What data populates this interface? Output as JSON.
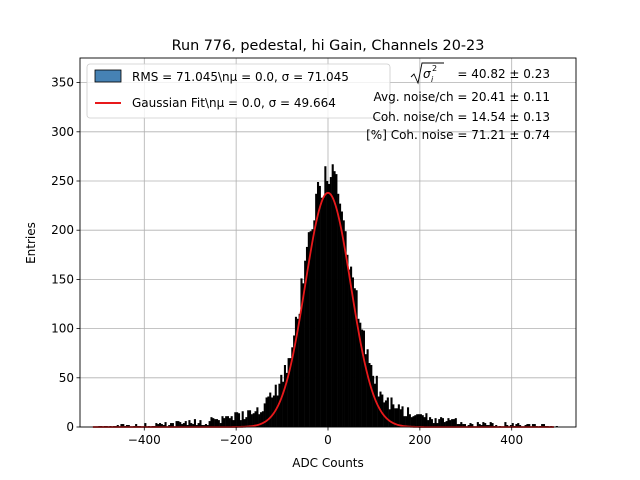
{
  "chart_data": {
    "type": "bar",
    "title": "Run 776, pedestal, hi Gain, Channels 20-23",
    "xlabel": "ADC Counts",
    "ylabel": "Entries",
    "xlim": [
      -540,
      540
    ],
    "ylim": [
      0,
      375
    ],
    "xticks": [
      -400,
      -200,
      0,
      200,
      400
    ],
    "yticks": [
      0,
      50,
      100,
      150,
      200,
      250,
      300,
      350
    ],
    "grid": true,
    "legend_position": "top-left",
    "histogram": {
      "name": "RMS = 71.045\\nμ = 0.0, σ = 71.045",
      "color": "#000000",
      "legend_color": "#4682b4",
      "bin_width": 4,
      "x_range": [
        -500,
        500
      ],
      "rms": 71.045,
      "mean": 0.0,
      "peak_entries": 265
    },
    "series": [
      {
        "name": "Gaussian Fit\\nμ = 0.0, σ = 49.664",
        "type": "line",
        "color": "#e8191b",
        "mu": 0.0,
        "sigma": 49.664,
        "amplitude": 238
      }
    ],
    "annotations": [
      {
        "prefix": "",
        "sqrt_label": "σ",
        "sub": "i",
        "sup": "2",
        "value": " = 40.82 ± 0.23"
      },
      {
        "text": "Avg. noise/ch = 20.41 ± 0.11"
      },
      {
        "text": "Coh. noise/ch = 14.54 ± 0.13"
      },
      {
        "text": "[%] Coh. noise = 71.21 ± 0.74"
      }
    ]
  }
}
